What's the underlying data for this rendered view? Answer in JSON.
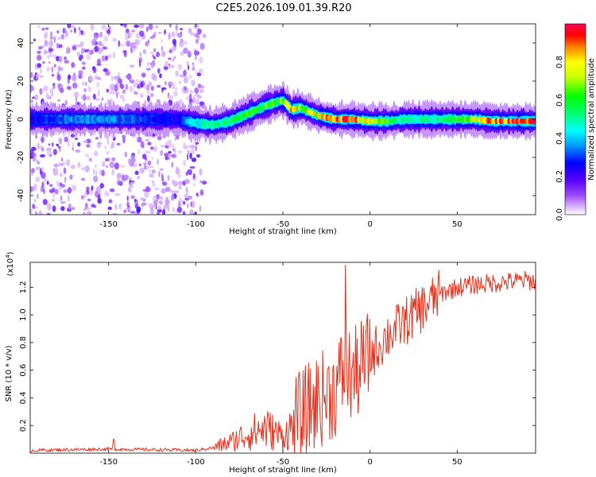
{
  "title": "C2E5.2026.109.01.39.R20",
  "chart_data": [
    {
      "type": "heatmap",
      "name": "spectrogram",
      "xlabel": "Height of straight line (km)",
      "ylabel": "Frequency (Hz)",
      "xlim": [
        -195,
        95
      ],
      "ylim": [
        -50,
        50
      ],
      "xticks": [
        -150,
        -100,
        -50,
        0,
        50
      ],
      "yticks": [
        -40,
        -20,
        0,
        20,
        40
      ],
      "colorbar": {
        "label": "Normalized spectral amplitude",
        "range": [
          0,
          1
        ],
        "ticks": [
          "0.0",
          "0.2",
          "0.4",
          "0.6",
          "0.8"
        ]
      },
      "ridge": {
        "x": [
          -195,
          -170,
          -150,
          -130,
          -110,
          -100,
          -90,
          -80,
          -70,
          -60,
          -50,
          -45,
          -40,
          -30,
          -20,
          -10,
          0,
          10,
          20,
          30,
          40,
          50,
          60,
          70,
          80,
          90,
          95
        ],
        "frequency": [
          0,
          0,
          0,
          0,
          0,
          -2,
          -3,
          -1,
          3,
          7,
          10,
          5,
          6,
          2,
          0,
          0,
          -1,
          -1,
          0,
          0,
          0,
          0,
          0,
          -1,
          -1,
          -1,
          -1
        ],
        "amplitude": [
          0.25,
          0.35,
          0.35,
          0.3,
          0.25,
          0.45,
          0.5,
          0.55,
          0.6,
          0.6,
          0.65,
          0.85,
          0.7,
          0.75,
          0.9,
          0.9,
          0.7,
          0.6,
          0.5,
          0.5,
          0.55,
          0.6,
          0.7,
          0.85,
          0.95,
          0.9,
          0.85
        ]
      }
    },
    {
      "type": "line",
      "name": "snr",
      "xlabel": "Height of straight line (km)",
      "ylabel": "SNR (10 * v/v)",
      "scale_label": "(x10",
      "scale_exponent": "4",
      "scale_suffix": ")",
      "xlim": [
        -195,
        95
      ],
      "ylim": [
        0,
        1.38
      ],
      "xticks": [
        -150,
        -100,
        -50,
        0,
        50
      ],
      "yticks": [
        "0.2",
        "0.4",
        "0.6",
        "0.8",
        "1.0",
        "1.2"
      ],
      "trend": {
        "x": [
          -195,
          -150,
          -100,
          -90,
          -80,
          -70,
          -60,
          -50,
          -40,
          -30,
          -20,
          -15,
          -10,
          0,
          10,
          20,
          30,
          40,
          50,
          60,
          70,
          80,
          90,
          95
        ],
        "y": [
          0.02,
          0.03,
          0.02,
          0.04,
          0.08,
          0.14,
          0.18,
          0.12,
          0.25,
          0.38,
          0.45,
          0.6,
          0.55,
          0.7,
          0.85,
          0.95,
          1.05,
          1.15,
          1.2,
          1.22,
          1.23,
          1.24,
          1.25,
          1.24
        ],
        "spike": {
          "x": -14,
          "y": 1.36
        }
      }
    }
  ]
}
